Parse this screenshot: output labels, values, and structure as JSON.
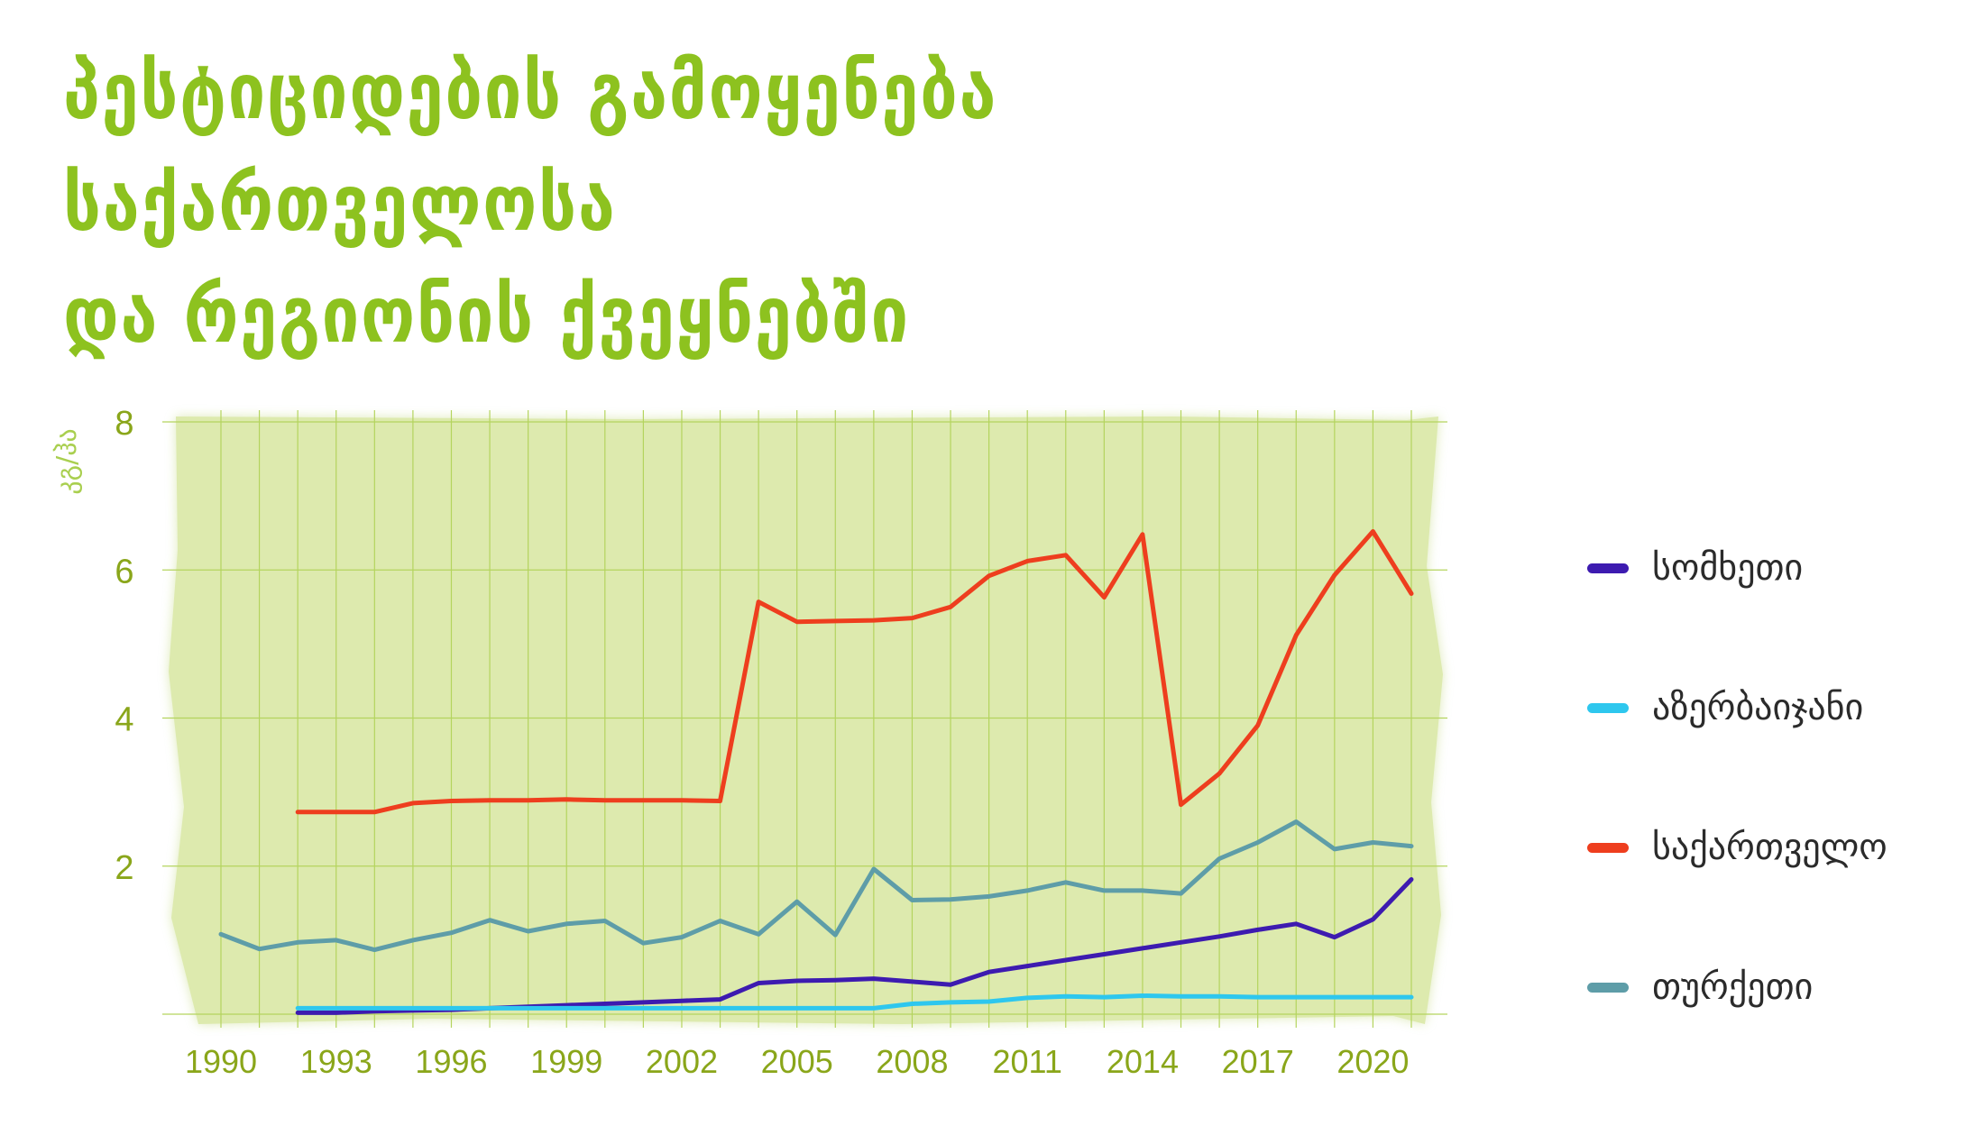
{
  "title": {
    "line1": "პესტიციდების გამოყენება საქართველოსა",
    "line2": "და რეგიონის ქვეყნებში"
  },
  "colors": {
    "title": "#8dc21f",
    "axis_text": "#8aa61a",
    "plot_background": "#ddeaae",
    "grid": "#b4d45e"
  },
  "chart_data": {
    "type": "line",
    "title": "პესტიციდების გამოყენება საქართველოსა და რეგიონის ქვეყნებში",
    "ylabel": "კგ/ჰა",
    "xlabel": "",
    "xlim": [
      1990,
      2021
    ],
    "ylim": [
      0,
      8
    ],
    "x_ticks": [
      1990,
      1993,
      1996,
      1999,
      2002,
      2005,
      2008,
      2011,
      2014,
      2017,
      2020
    ],
    "y_ticks": [
      2,
      4,
      6,
      8
    ],
    "grid": true,
    "legend_position": "right",
    "series": [
      {
        "name": "სომხეთი",
        "color": "#3d1bb0",
        "points": [
          [
            1992,
            0.02
          ],
          [
            1993,
            0.02
          ],
          [
            1994,
            0.04
          ],
          [
            1995,
            0.05
          ],
          [
            1996,
            0.06
          ],
          [
            1997,
            0.08
          ],
          [
            1998,
            0.1
          ],
          [
            1999,
            0.12
          ],
          [
            2000,
            0.14
          ],
          [
            2001,
            0.16
          ],
          [
            2002,
            0.18
          ],
          [
            2003,
            0.2
          ],
          [
            2004,
            0.42
          ],
          [
            2005,
            0.45
          ],
          [
            2006,
            0.46
          ],
          [
            2007,
            0.48
          ],
          [
            2008,
            0.44
          ],
          [
            2009,
            0.4
          ],
          [
            2010,
            0.57
          ],
          [
            2011,
            0.65
          ],
          [
            2012,
            0.73
          ],
          [
            2013,
            0.81
          ],
          [
            2014,
            0.89
          ],
          [
            2015,
            0.97
          ],
          [
            2016,
            1.05
          ],
          [
            2017,
            1.14
          ],
          [
            2018,
            1.22
          ],
          [
            2019,
            1.04
          ],
          [
            2020,
            1.28
          ],
          [
            2021,
            1.82
          ]
        ]
      },
      {
        "name": "აზერბაიჯანი",
        "color": "#2ec7ee",
        "points": [
          [
            1992,
            0.08
          ],
          [
            1993,
            0.08
          ],
          [
            1994,
            0.08
          ],
          [
            1995,
            0.08
          ],
          [
            1996,
            0.08
          ],
          [
            1997,
            0.08
          ],
          [
            1998,
            0.08
          ],
          [
            1999,
            0.08
          ],
          [
            2000,
            0.08
          ],
          [
            2001,
            0.08
          ],
          [
            2002,
            0.08
          ],
          [
            2003,
            0.08
          ],
          [
            2004,
            0.08
          ],
          [
            2005,
            0.08
          ],
          [
            2006,
            0.08
          ],
          [
            2007,
            0.08
          ],
          [
            2008,
            0.14
          ],
          [
            2009,
            0.16
          ],
          [
            2010,
            0.17
          ],
          [
            2011,
            0.22
          ],
          [
            2012,
            0.24
          ],
          [
            2013,
            0.23
          ],
          [
            2014,
            0.25
          ],
          [
            2015,
            0.24
          ],
          [
            2016,
            0.24
          ],
          [
            2017,
            0.23
          ],
          [
            2018,
            0.23
          ],
          [
            2019,
            0.23
          ],
          [
            2020,
            0.23
          ],
          [
            2021,
            0.23
          ]
        ]
      },
      {
        "name": "საქართველო",
        "color": "#ee3e1e",
        "points": [
          [
            1992,
            2.73
          ],
          [
            1993,
            2.73
          ],
          [
            1994,
            2.73
          ],
          [
            1995,
            2.85
          ],
          [
            1996,
            2.88
          ],
          [
            1997,
            2.89
          ],
          [
            1998,
            2.89
          ],
          [
            1999,
            2.9
          ],
          [
            2000,
            2.89
          ],
          [
            2001,
            2.89
          ],
          [
            2002,
            2.89
          ],
          [
            2003,
            2.88
          ],
          [
            2004,
            5.57
          ],
          [
            2005,
            5.3
          ],
          [
            2006,
            5.31
          ],
          [
            2007,
            5.32
          ],
          [
            2008,
            5.35
          ],
          [
            2009,
            5.5
          ],
          [
            2010,
            5.92
          ],
          [
            2011,
            6.12
          ],
          [
            2012,
            6.2
          ],
          [
            2013,
            5.63
          ],
          [
            2014,
            6.48
          ],
          [
            2015,
            2.83
          ],
          [
            2016,
            3.25
          ],
          [
            2017,
            3.9
          ],
          [
            2018,
            5.12
          ],
          [
            2019,
            5.93
          ],
          [
            2020,
            6.52
          ],
          [
            2021,
            5.68
          ]
        ]
      },
      {
        "name": "თურქეთი",
        "color": "#5e9da8",
        "points": [
          [
            1990,
            1.08
          ],
          [
            1991,
            0.88
          ],
          [
            1992,
            0.97
          ],
          [
            1993,
            1.0
          ],
          [
            1994,
            0.87
          ],
          [
            1995,
            1.0
          ],
          [
            1996,
            1.1
          ],
          [
            1997,
            1.27
          ],
          [
            1998,
            1.12
          ],
          [
            1999,
            1.22
          ],
          [
            2000,
            1.26
          ],
          [
            2001,
            0.96
          ],
          [
            2002,
            1.04
          ],
          [
            2003,
            1.26
          ],
          [
            2004,
            1.08
          ],
          [
            2005,
            1.52
          ],
          [
            2006,
            1.07
          ],
          [
            2007,
            1.96
          ],
          [
            2008,
            1.54
          ],
          [
            2009,
            1.55
          ],
          [
            2010,
            1.59
          ],
          [
            2011,
            1.67
          ],
          [
            2012,
            1.78
          ],
          [
            2013,
            1.67
          ],
          [
            2014,
            1.67
          ],
          [
            2015,
            1.63
          ],
          [
            2016,
            2.1
          ],
          [
            2017,
            2.32
          ],
          [
            2018,
            2.6
          ],
          [
            2019,
            2.23
          ],
          [
            2020,
            2.32
          ],
          [
            2021,
            2.27
          ]
        ]
      }
    ]
  }
}
